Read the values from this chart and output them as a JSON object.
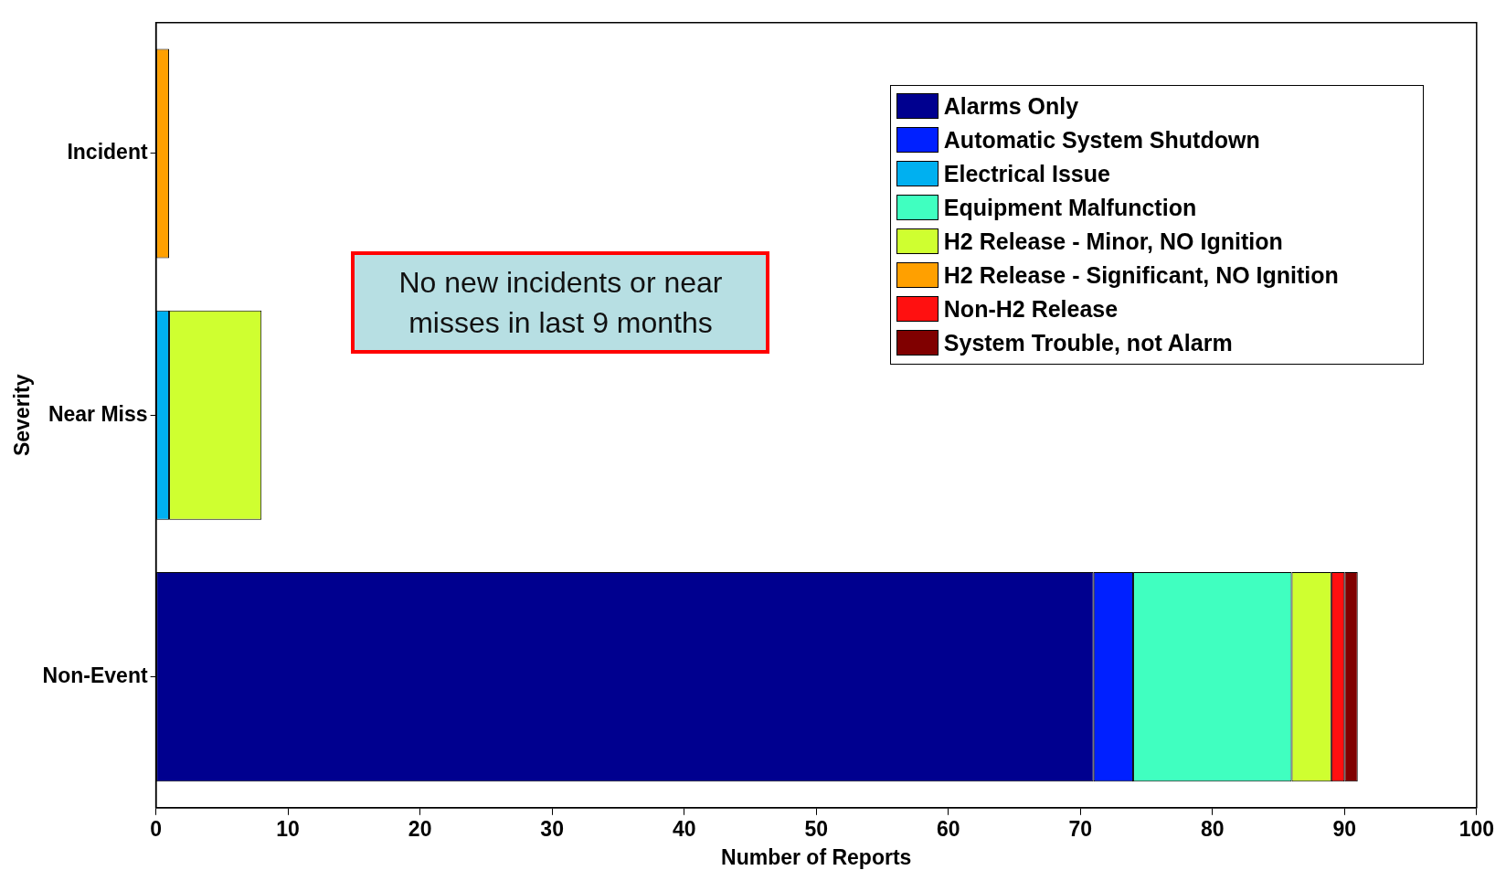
{
  "chart_data": {
    "type": "bar",
    "orientation": "horizontal",
    "stacked": true,
    "xlabel": "Number of Reports",
    "ylabel": "Severity",
    "categories": [
      "Incident",
      "Near Miss",
      "Non-Event"
    ],
    "series": [
      {
        "name": "Alarms Only",
        "color": "#00008f",
        "values": [
          0,
          0,
          71
        ]
      },
      {
        "name": "Automatic System Shutdown",
        "color": "#0020ff",
        "values": [
          0,
          0,
          3
        ]
      },
      {
        "name": "Electrical Issue",
        "color": "#00b0f0",
        "values": [
          0,
          1,
          0
        ]
      },
      {
        "name": "Equipment Malfunction",
        "color": "#40ffc0",
        "values": [
          0,
          0,
          12
        ]
      },
      {
        "name": "H2 Release - Minor, NO Ignition",
        "color": "#cfff30",
        "values": [
          0,
          7,
          3
        ]
      },
      {
        "name": "H2 Release - Significant, NO Ignition",
        "color": "#ffa000",
        "values": [
          1,
          0,
          0
        ]
      },
      {
        "name": "Non-H2 Release",
        "color": "#ff1010",
        "values": [
          0,
          0,
          1
        ]
      },
      {
        "name": "System Trouble, not Alarm",
        "color": "#800000",
        "values": [
          0,
          0,
          1
        ]
      }
    ],
    "xlim": [
      0,
      100
    ],
    "xticks": [
      0,
      10,
      20,
      30,
      40,
      50,
      60,
      70,
      80,
      90,
      100
    ],
    "grid": false,
    "legend": "top right",
    "annotations": [
      "No new incidents or near misses in last 9 months"
    ]
  }
}
